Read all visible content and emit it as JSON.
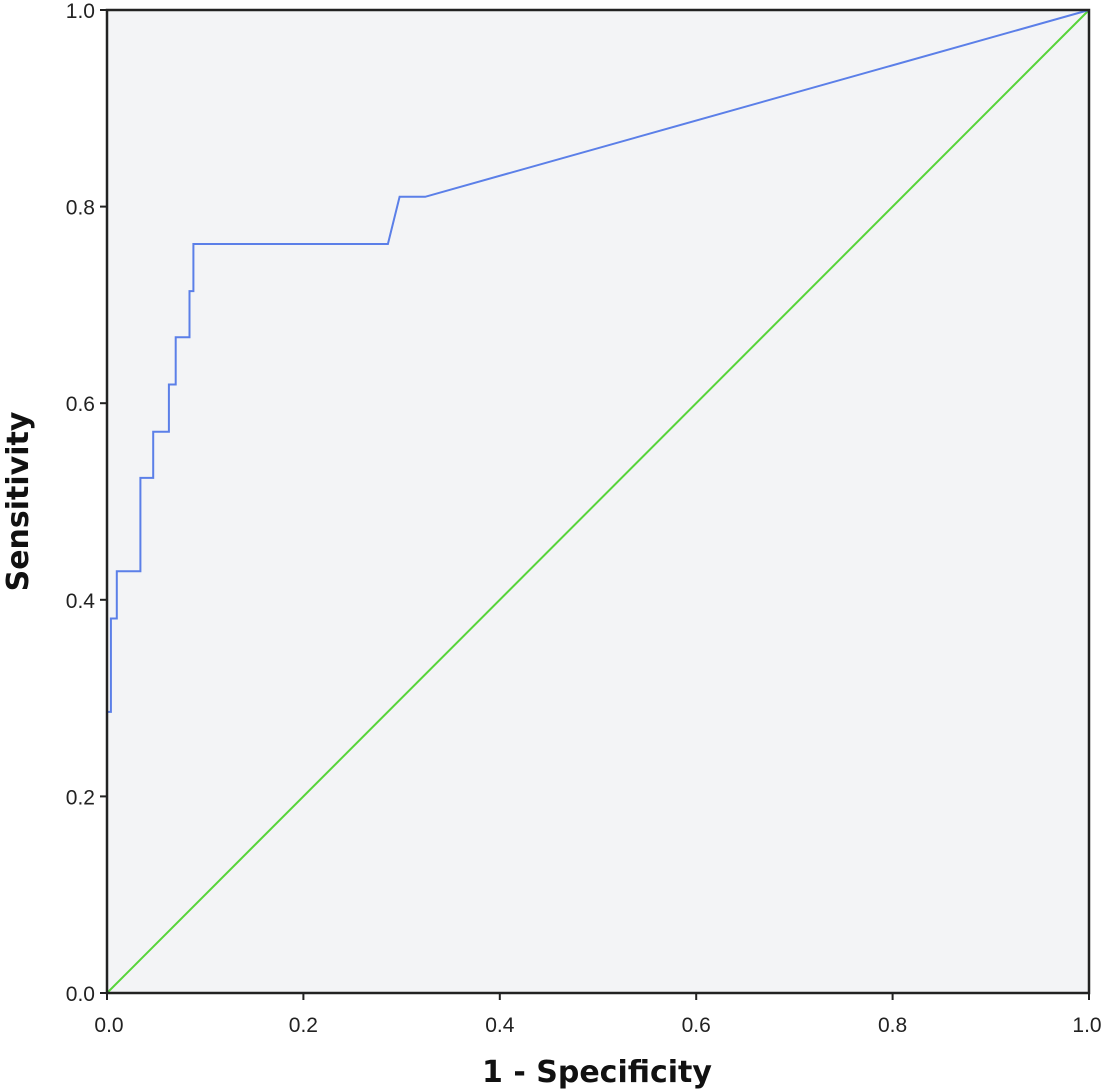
{
  "chart_data": {
    "type": "line",
    "title": "",
    "xlabel": "1 - Specificity",
    "ylabel": "Sensitivity",
    "xlim": [
      0,
      1
    ],
    "ylim": [
      0,
      1
    ],
    "x_ticks": [
      "0.0",
      "0.2",
      "0.4",
      "0.6",
      "0.8",
      "1.0"
    ],
    "y_ticks": [
      "0.0",
      "0.2",
      "0.4",
      "0.6",
      "0.8",
      "1.0"
    ],
    "grid": false,
    "legend": "none",
    "colors": {
      "roc": "#5b7fe8",
      "reference": "#57d43a",
      "plot_bg": "#f3f4f6",
      "frame": "#222222"
    },
    "series": [
      {
        "key": "roc",
        "x": [
          0.0,
          0.0,
          0.004,
          0.004,
          0.01,
          0.01,
          0.034,
          0.034,
          0.047,
          0.047,
          0.063,
          0.063,
          0.07,
          0.07,
          0.084,
          0.084,
          0.088,
          0.088,
          0.286,
          0.298,
          0.324,
          1.0
        ],
        "y": [
          0.0,
          0.286,
          0.286,
          0.381,
          0.381,
          0.429,
          0.429,
          0.524,
          0.524,
          0.571,
          0.571,
          0.619,
          0.619,
          0.667,
          0.667,
          0.714,
          0.714,
          0.762,
          0.762,
          0.81,
          0.81,
          1.0
        ]
      },
      {
        "key": "reference",
        "x": [
          0,
          1
        ],
        "y": [
          0,
          1
        ]
      }
    ]
  }
}
